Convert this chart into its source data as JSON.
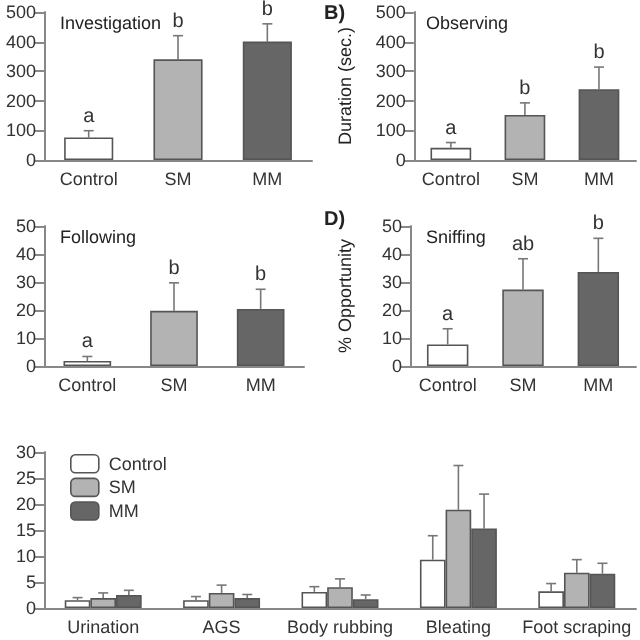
{
  "chart_data": [
    {
      "type": "bar",
      "title": "Investigation",
      "categories": [
        "Control",
        "SM",
        "MM"
      ],
      "values": [
        76,
        340,
        400
      ],
      "errors": [
        23,
        80,
        60
      ],
      "colors": [
        "#ffffff",
        "#b3b3b3",
        "#666666"
      ],
      "ylim": [
        0,
        500
      ],
      "yticks": [
        0,
        100,
        200,
        300,
        400,
        500
      ],
      "grid": false,
      "legend": false,
      "annotations": [
        {
          "text": "a",
          "x": "Control",
          "y": 99
        },
        {
          "text": "b",
          "x": "SM",
          "y": 420
        },
        {
          "text": "b",
          "x": "MM",
          "y": 460
        }
      ]
    },
    {
      "type": "bar",
      "title": "Observing",
      "ylabel": "Duration (sec.)",
      "categories": [
        "Control",
        "SM",
        "MM"
      ],
      "values": [
        41,
        152,
        239
      ],
      "errors": [
        18,
        41,
        75
      ],
      "colors": [
        "#ffffff",
        "#b3b3b3",
        "#666666"
      ],
      "ylim": [
        0,
        500
      ],
      "yticks": [
        0,
        100,
        200,
        300,
        400,
        500
      ],
      "grid": false,
      "legend": false,
      "annotations": [
        "B)",
        {
          "text": "a",
          "x": "Control",
          "y": 59
        },
        {
          "text": "b",
          "x": "SM",
          "y": 193
        },
        {
          "text": "b",
          "x": "MM",
          "y": 314
        }
      ]
    },
    {
      "type": "bar",
      "title": "Following",
      "categories": [
        "Control",
        "SM",
        "MM"
      ],
      "values": [
        1.8,
        19.7,
        20.4
      ],
      "errors": [
        1.6,
        10,
        7
      ],
      "colors": [
        "#ffffff",
        "#b3b3b3",
        "#666666"
      ],
      "ylim": [
        0,
        50
      ],
      "yticks": [
        0,
        10,
        20,
        30,
        40,
        50
      ],
      "grid": false,
      "legend": false,
      "annotations": [
        {
          "text": "a",
          "x": "Control",
          "y": 3.4
        },
        {
          "text": "b",
          "x": "SM",
          "y": 29.7
        },
        {
          "text": "b",
          "x": "MM",
          "y": 27.4
        }
      ]
    },
    {
      "type": "bar",
      "title": "Sniffing",
      "ylabel": "% Opportunity",
      "categories": [
        "Control",
        "SM",
        "MM"
      ],
      "values": [
        7.7,
        27.3,
        33.6
      ],
      "errors": [
        5.6,
        11,
        12
      ],
      "colors": [
        "#ffffff",
        "#b3b3b3",
        "#666666"
      ],
      "ylim": [
        0,
        50
      ],
      "yticks": [
        0,
        10,
        20,
        30,
        40,
        50
      ],
      "grid": false,
      "legend": false,
      "annotations": [
        "D)",
        {
          "text": "a",
          "x": "Control",
          "y": 13.3
        },
        {
          "text": "ab",
          "x": "SM",
          "y": 38.3
        },
        {
          "text": "b",
          "x": "MM",
          "y": 45.6
        }
      ]
    },
    {
      "type": "bar",
      "categories": [
        "Urination",
        "AGS",
        "Body rubbing",
        "Bleating",
        "Foot scraping"
      ],
      "ylim": [
        0,
        30
      ],
      "yticks": [
        0,
        5,
        10,
        15,
        20,
        25,
        30
      ],
      "grid": false,
      "legend": "top left",
      "series": [
        {
          "name": "Control",
          "color": "#ffffff",
          "values": [
            1.5,
            1.5,
            3.1,
            9.3,
            3.2
          ],
          "errors": [
            0.5,
            0.7,
            1,
            4.6,
            1.5
          ]
        },
        {
          "name": "SM",
          "color": "#b3b3b3",
          "values": [
            1.9,
            2.9,
            4,
            18.9,
            6.8
          ],
          "errors": [
            1,
            1.5,
            1.6,
            8.5,
            2.5
          ]
        },
        {
          "name": "MM",
          "color": "#666666",
          "values": [
            2.5,
            1.9,
            1.7,
            15.3,
            6.6
          ],
          "errors": [
            0.9,
            0.7,
            0.8,
            6.6,
            2
          ]
        }
      ]
    }
  ]
}
